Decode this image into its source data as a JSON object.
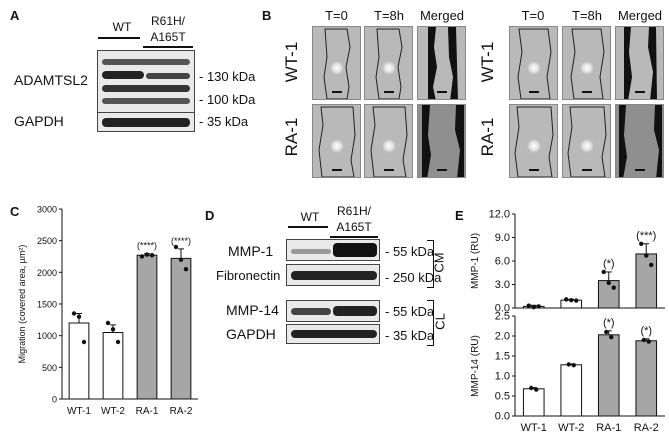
{
  "panels": {
    "A": "A",
    "B": "B",
    "C": "C",
    "D": "D",
    "E": "E"
  },
  "panel_a": {
    "col_wt": "WT",
    "col_mut_line1": "R61H/",
    "col_mut_line2": "A165T",
    "row_adamtsl2": "ADAMTSL2",
    "row_gapdh": "GAPDH",
    "marker_130": "- 130 kDa",
    "marker_100": "- 100 kDa",
    "marker_35": "- 35 kDa"
  },
  "panel_b": {
    "col_t0": "T=0",
    "col_t8": "T=8h",
    "col_merged": "Merged",
    "row_wt": "WT-1",
    "row_ra": "RA-1"
  },
  "panel_d": {
    "col_wt": "WT",
    "col_mut_line1": "R61H/",
    "col_mut_line2": "A165T",
    "row_mmp1": "MMP-1",
    "row_fibronectin": "Fibronectin",
    "row_mmp14": "MMP-14",
    "row_gapdh": "GAPDH",
    "marker_55a": "- 55 kDa",
    "marker_250": "- 250 kDa",
    "marker_55b": "- 55 kDa",
    "marker_35": "- 35 kDa",
    "group_cm": "CM",
    "group_cl": "CL"
  },
  "chart_data": [
    {
      "id": "C",
      "type": "bar",
      "categories": [
        "WT-1",
        "WT-2",
        "RA-1",
        "RA-2"
      ],
      "values": [
        1200,
        1050,
        2270,
        2220
      ],
      "errors": [
        150,
        120,
        25,
        150
      ],
      "points": [
        [
          1350,
          1300,
          900
        ],
        [
          1200,
          1100,
          900
        ],
        [
          2250,
          2280,
          2270
        ],
        [
          2400,
          2200,
          2050
        ]
      ],
      "annotations": [
        "",
        "",
        "(****)",
        "(****)"
      ],
      "bar_colors": [
        "#ffffff",
        "#ffffff",
        "#a6a6a6",
        "#a6a6a6"
      ],
      "ylabel": "Migration (covered area, µm²)",
      "ylim": [
        0,
        3000
      ],
      "yticks": [
        0,
        500,
        1000,
        1500,
        2000,
        2500,
        3000
      ]
    },
    {
      "id": "E-top",
      "type": "bar",
      "categories": [
        "WT-1",
        "WT-2",
        "RA-1",
        "RA-2"
      ],
      "values": [
        0.2,
        1.0,
        3.5,
        6.9
      ],
      "errors": [
        0.15,
        0.1,
        1.1,
        1.3
      ],
      "points": [
        [
          0.3,
          0.1,
          0.2
        ],
        [
          1.1,
          1.0,
          0.95
        ],
        [
          4.6,
          3.2,
          2.6
        ],
        [
          8.2,
          6.7,
          5.5
        ]
      ],
      "annotations": [
        "",
        "",
        "(*)",
        "(***)"
      ],
      "bar_colors": [
        "#ffffff",
        "#ffffff",
        "#a6a6a6",
        "#a6a6a6"
      ],
      "ylabel": "MMP-1 (RU)",
      "ylim": [
        0,
        12
      ],
      "yticks": [
        "0.0",
        "3.0",
        "6.0",
        "9.0",
        "12.0"
      ]
    },
    {
      "id": "E-bottom",
      "type": "bar",
      "categories": [
        "WT-1",
        "WT-2",
        "RA-1",
        "RA-2"
      ],
      "values": [
        0.68,
        1.28,
        2.03,
        1.88
      ],
      "errors": [
        0.03,
        0.02,
        0.1,
        0.05
      ],
      "points": [
        [
          0.7,
          0.66
        ],
        [
          1.29,
          1.27
        ],
        [
          2.1,
          1.97
        ],
        [
          1.9,
          1.86
        ]
      ],
      "annotations": [
        "",
        "",
        "(*)",
        "(*)"
      ],
      "bar_colors": [
        "#ffffff",
        "#ffffff",
        "#a6a6a6",
        "#a6a6a6"
      ],
      "ylabel": "MMP-14 (RU)",
      "ylim": [
        0,
        2.5
      ],
      "yticks": [
        "0.0",
        "0.5",
        "1.0",
        "1.5",
        "2.0",
        "2.5"
      ]
    }
  ]
}
